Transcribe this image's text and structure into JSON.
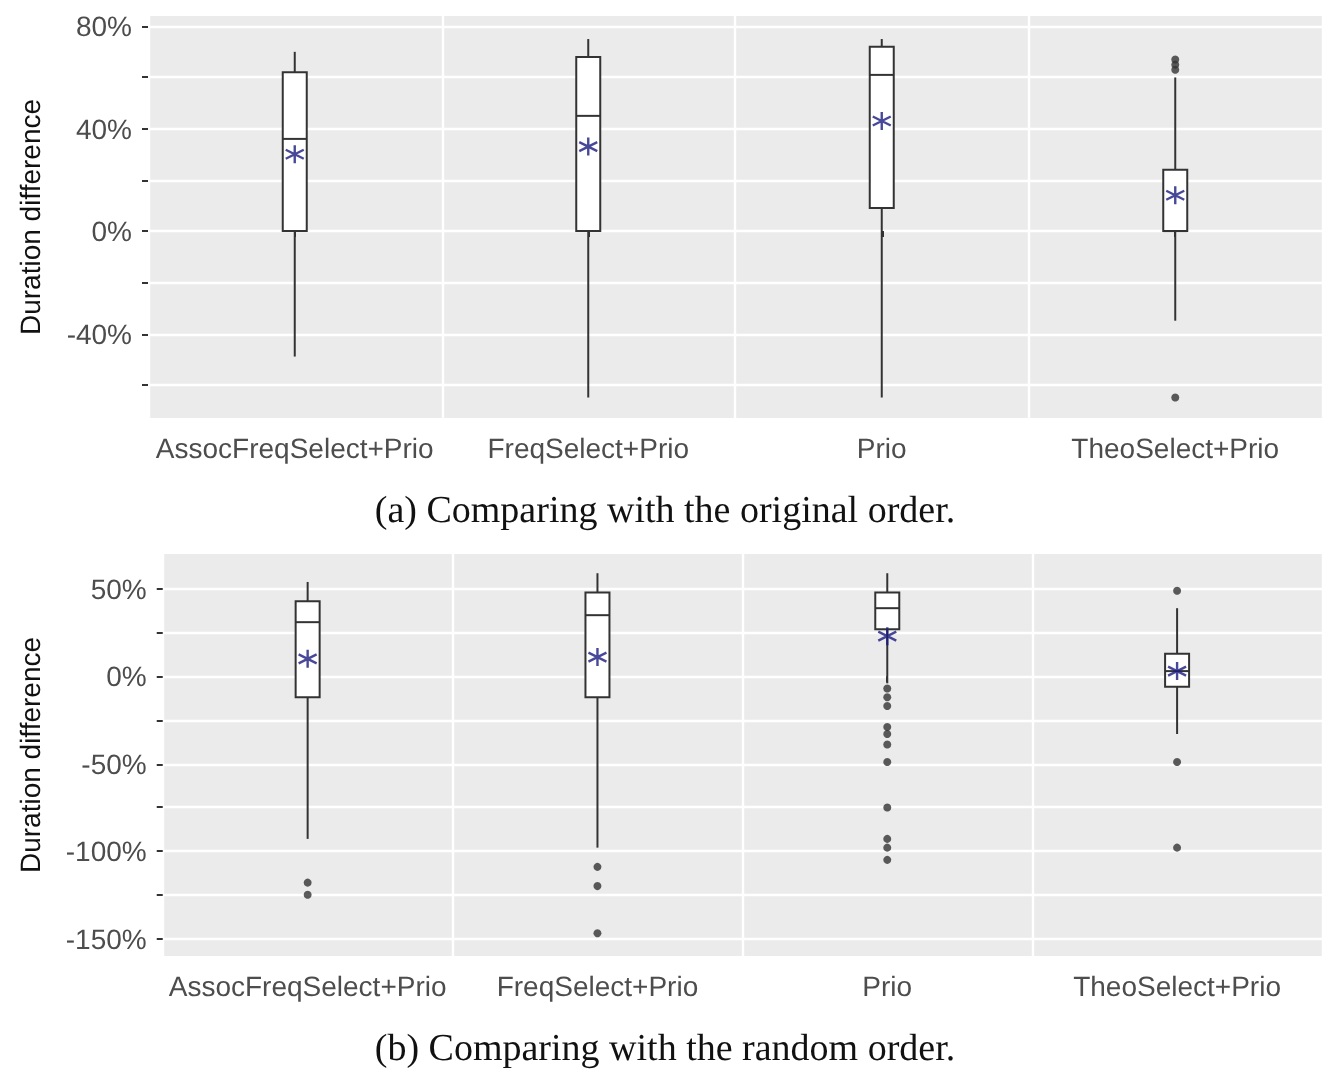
{
  "chart_data": [
    {
      "type": "box",
      "ylabel": "Duration difference",
      "categories": [
        "AssocFreqSelect+Prio",
        "FreqSelect+Prio",
        "Prio",
        "TheoSelect+Prio"
      ],
      "color": "#333333",
      "boxes": [
        {
          "low": -49,
          "q1": 0,
          "median": 36,
          "q3": 62,
          "high": 70,
          "mean": 30
        },
        {
          "low": -65,
          "q1": 0,
          "median": 45,
          "q3": 68,
          "high": 75,
          "mean": 33
        },
        {
          "low": -65,
          "q1": 9,
          "median": 61,
          "q3": 72,
          "high": 75,
          "mean": 43
        },
        {
          "low": -35,
          "q1": 0,
          "median": 0,
          "q3": 24,
          "high": 60,
          "mean": 14,
          "outliers": [
            63,
            65,
            67,
            -65
          ]
        }
      ],
      "ylim": [
        -73,
        84
      ],
      "yticks": [
        {
          "value": -60,
          "label": null
        },
        {
          "value": -40,
          "label": "-40%"
        },
        {
          "value": -20,
          "label": null
        },
        {
          "value": 0,
          "label": "0%"
        },
        {
          "value": 20,
          "label": null
        },
        {
          "value": 40,
          "label": "40%"
        },
        {
          "value": 60,
          "label": null
        },
        {
          "value": 80,
          "label": "80%"
        }
      ],
      "grid": true,
      "annotations": [
        "(a) Comparing with the original order."
      ]
    },
    {
      "type": "box",
      "ylabel": "Duration difference",
      "categories": [
        "AssocFreqSelect+Prio",
        "FreqSelect+Prio",
        "Prio",
        "TheoSelect+Prio"
      ],
      "color": "#333333",
      "boxes": [
        {
          "low": -93,
          "q1": -12,
          "median": 31,
          "q3": 43,
          "high": 54,
          "mean": 10,
          "outliers": [
            -118,
            -125
          ]
        },
        {
          "low": -98,
          "q1": -12,
          "median": 35,
          "q3": 48,
          "high": 59,
          "mean": 11,
          "outliers": [
            -109,
            -120,
            -147
          ]
        },
        {
          "low": -4,
          "q1": 27,
          "median": 39,
          "q3": 48,
          "high": 59,
          "mean": 23,
          "outliers": [
            -7,
            -12,
            -17,
            -29,
            -33,
            -39,
            -49,
            -75,
            -93,
            -98,
            -105
          ]
        },
        {
          "low": -33,
          "q1": -6,
          "median": 3,
          "q3": 13,
          "high": 39,
          "mean": 3,
          "outliers": [
            49,
            -49,
            -98
          ]
        }
      ],
      "ylim": [
        -160,
        70
      ],
      "yticks": [
        {
          "value": -150,
          "label": "-150%"
        },
        {
          "value": -125,
          "label": null
        },
        {
          "value": -100,
          "label": "-100%"
        },
        {
          "value": -75,
          "label": null
        },
        {
          "value": -50,
          "label": "-50%"
        },
        {
          "value": -25,
          "label": null
        },
        {
          "value": 0,
          "label": "0%"
        },
        {
          "value": 25,
          "label": null
        },
        {
          "value": 50,
          "label": "50%"
        }
      ],
      "grid": true,
      "annotations": [
        "(b) Comparing with the random order."
      ]
    }
  ]
}
